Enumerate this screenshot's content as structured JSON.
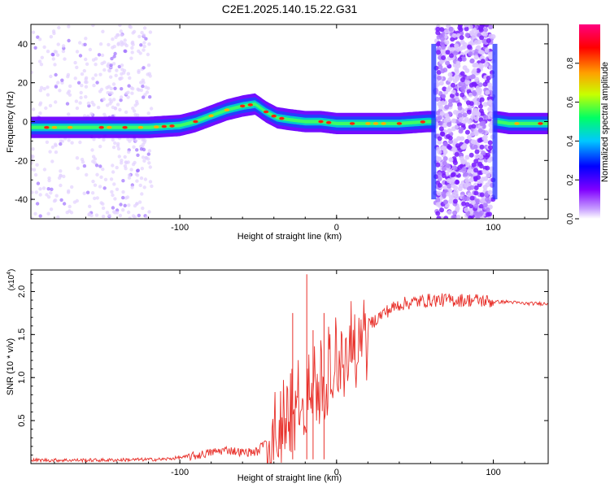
{
  "title": "C2E1.2025.140.15.22.G31",
  "chart_data": [
    {
      "type": "heatmap",
      "xlabel": "Height of straight line (km)",
      "ylabel": "Frequency (Hz)",
      "xlim": [
        -195,
        135
      ],
      "ylim": [
        -50,
        50
      ],
      "xticks": [
        -100,
        0,
        100
      ],
      "yticks": [
        -40,
        -20,
        0,
        20,
        40
      ],
      "colorbar": {
        "label": "Normalized spectral amplitude",
        "range": [
          0,
          1
        ],
        "ticks": [
          "0.0",
          "0.2",
          "0.4",
          "0.6",
          "0.8"
        ],
        "colors": [
          "#ffffff",
          "#c8a0ff",
          "#8000ff",
          "#0000ff",
          "#00c8ff",
          "#00ff64",
          "#c8ff00",
          "#ffa000",
          "#ff0000",
          "#ff0080"
        ]
      },
      "band_center": [
        [
          -195,
          -3
        ],
        [
          -170,
          -3
        ],
        [
          -150,
          -3
        ],
        [
          -120,
          -3
        ],
        [
          -100,
          -2
        ],
        [
          -90,
          0
        ],
        [
          -80,
          3
        ],
        [
          -70,
          6
        ],
        [
          -60,
          8
        ],
        [
          -52,
          9
        ],
        [
          -45,
          5
        ],
        [
          -38,
          2
        ],
        [
          -30,
          1
        ],
        [
          -20,
          0
        ],
        [
          -10,
          0
        ],
        [
          0,
          -1
        ],
        [
          20,
          -1
        ],
        [
          40,
          -1
        ],
        [
          58,
          0
        ],
        [
          62,
          0
        ],
        [
          102,
          0
        ],
        [
          110,
          -1
        ],
        [
          135,
          -1
        ]
      ],
      "noise_segments": [
        [
          -195,
          -145
        ],
        [
          -145,
          -118
        ],
        [
          63,
          100
        ]
      ]
    },
    {
      "type": "line",
      "xlabel": "Height of straight line (km)",
      "ylabel": "SNR (10 * v/v)",
      "multiplier": "(x10",
      "multiplier_exp": "4",
      "multiplier_close": ")",
      "xlim": [
        -195,
        135
      ],
      "ylim": [
        0,
        2.25
      ],
      "xticks": [
        -100,
        0,
        100
      ],
      "yticks": [
        0.5,
        1.0,
        1.5,
        2.0
      ],
      "yticklabels": [
        "0.5",
        "1.0",
        "1.5",
        "2.0"
      ],
      "color": "#e8302a",
      "trend": [
        [
          -195,
          0.04
        ],
        [
          -150,
          0.04
        ],
        [
          -110,
          0.05
        ],
        [
          -90,
          0.09
        ],
        [
          -80,
          0.13
        ],
        [
          -70,
          0.16
        ],
        [
          -60,
          0.13
        ],
        [
          -50,
          0.14
        ],
        [
          -40,
          0.45
        ],
        [
          -30,
          0.75
        ],
        [
          -20,
          0.8
        ],
        [
          -10,
          1.05
        ],
        [
          0,
          1.3
        ],
        [
          10,
          1.45
        ],
        [
          20,
          1.6
        ],
        [
          30,
          1.75
        ],
        [
          40,
          1.85
        ],
        [
          50,
          1.88
        ],
        [
          60,
          1.9
        ],
        [
          70,
          1.9
        ],
        [
          80,
          1.9
        ],
        [
          90,
          1.9
        ],
        [
          100,
          1.88
        ],
        [
          110,
          1.88
        ],
        [
          120,
          1.86
        ],
        [
          135,
          1.86
        ]
      ],
      "spikes": [
        [
          -19,
          2.2
        ],
        [
          -28,
          1.75
        ],
        [
          -8,
          1.75
        ],
        [
          -15,
          1.55
        ]
      ]
    }
  ]
}
